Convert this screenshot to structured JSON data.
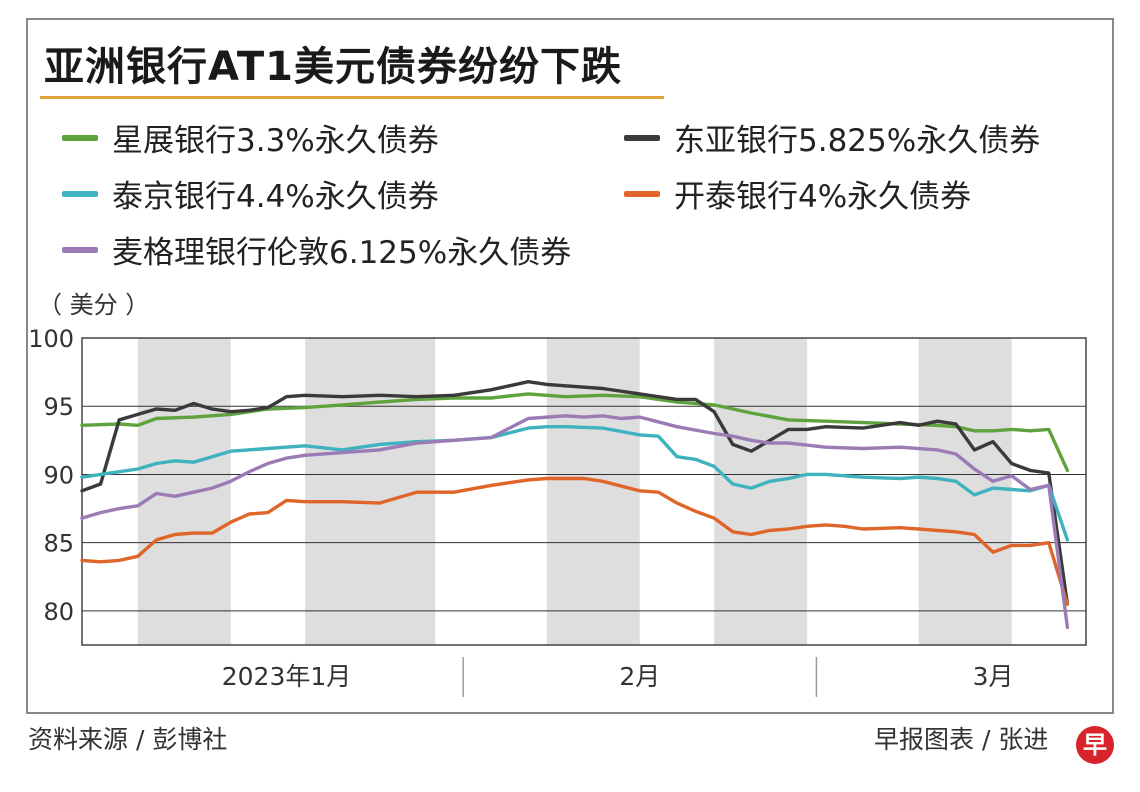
{
  "chart_data": {
    "type": "line",
    "title": "亚洲银行AT1美元债券纷纷下跌",
    "unit_label": "（ 美分 ）",
    "ylabel": "美分",
    "xlabel": "",
    "ylim": [
      77.5,
      100
    ],
    "yticks": [
      80,
      85,
      90,
      95,
      100
    ],
    "x_range": [
      0,
      54
    ],
    "month_labels": [
      {
        "label": "2023年1月",
        "x": 11
      },
      {
        "label": "2月",
        "x": 30
      },
      {
        "label": "3月",
        "x": 49
      }
    ],
    "month_boundaries": [
      20.5,
      39.5
    ],
    "shaded_weeks": [
      [
        3,
        8
      ],
      [
        12,
        19
      ],
      [
        25,
        30
      ],
      [
        34,
        39
      ],
      [
        45,
        50
      ]
    ],
    "grid": true,
    "series": [
      {
        "name": "星展银行3.3%永久债券",
        "color": "#5fa33e",
        "x": [
          0,
          2,
          3,
          4,
          6,
          8,
          10,
          12,
          14,
          16,
          18,
          20,
          22,
          24,
          26,
          28,
          30,
          32,
          34,
          36,
          38,
          40,
          42,
          44,
          46,
          47,
          48,
          49,
          50,
          51,
          52,
          53
        ],
        "values": [
          93.6,
          93.7,
          93.6,
          94.1,
          94.2,
          94.4,
          94.8,
          94.9,
          95.1,
          95.3,
          95.5,
          95.6,
          95.6,
          95.9,
          95.7,
          95.8,
          95.7,
          95.3,
          95.1,
          94.5,
          94.0,
          93.9,
          93.8,
          93.7,
          93.6,
          93.5,
          93.2,
          93.2,
          93.3,
          93.2,
          93.3,
          90.3
        ]
      },
      {
        "name": "东亚银行5.825%永久债券",
        "color": "#3a3a3a",
        "x": [
          0,
          1,
          2,
          3,
          4,
          5,
          6,
          7,
          8,
          9,
          10,
          11,
          12,
          14,
          16,
          18,
          20,
          22,
          24,
          25,
          26,
          28,
          30,
          31,
          32,
          33,
          34,
          35,
          36,
          37,
          38,
          39,
          40,
          42,
          44,
          45,
          46,
          47,
          48,
          49,
          50,
          51,
          52,
          53
        ],
        "values": [
          88.8,
          89.3,
          94.0,
          94.4,
          94.8,
          94.7,
          95.2,
          94.8,
          94.6,
          94.7,
          94.9,
          95.7,
          95.8,
          95.7,
          95.8,
          95.7,
          95.8,
          96.2,
          96.8,
          96.6,
          96.5,
          96.3,
          95.9,
          95.7,
          95.5,
          95.5,
          94.6,
          92.2,
          91.7,
          92.5,
          93.3,
          93.3,
          93.5,
          93.4,
          93.8,
          93.6,
          93.9,
          93.7,
          91.8,
          92.4,
          90.8,
          90.3,
          90.1,
          80.5
        ]
      },
      {
        "name": "泰京银行4.4%永久债券",
        "color": "#3fb2bf",
        "x": [
          0,
          2,
          3,
          4,
          5,
          6,
          7,
          8,
          10,
          12,
          14,
          16,
          18,
          20,
          22,
          24,
          25,
          26,
          28,
          30,
          31,
          32,
          33,
          34,
          35,
          36,
          37,
          38,
          39,
          40,
          42,
          44,
          45,
          46,
          47,
          48,
          49,
          50,
          51,
          52,
          53
        ],
        "values": [
          89.8,
          90.2,
          90.4,
          90.8,
          91.0,
          90.9,
          91.3,
          91.7,
          91.9,
          92.1,
          91.8,
          92.2,
          92.4,
          92.5,
          92.7,
          93.4,
          93.5,
          93.5,
          93.4,
          92.9,
          92.8,
          91.3,
          91.1,
          90.6,
          89.3,
          89.0,
          89.5,
          89.7,
          90.0,
          90.0,
          89.8,
          89.7,
          89.8,
          89.7,
          89.5,
          88.5,
          89.0,
          88.9,
          88.8,
          89.2,
          85.2
        ]
      },
      {
        "name": "开泰银行4%永久债券",
        "color": "#e0652a",
        "x": [
          0,
          1,
          2,
          3,
          4,
          5,
          6,
          7,
          8,
          9,
          10,
          11,
          12,
          14,
          16,
          18,
          20,
          22,
          24,
          25,
          26,
          27,
          28,
          30,
          31,
          32,
          33,
          34,
          35,
          36,
          37,
          38,
          39,
          40,
          41,
          42,
          44,
          45,
          46,
          47,
          48,
          49,
          50,
          51,
          52,
          53
        ],
        "values": [
          83.7,
          83.6,
          83.7,
          84.0,
          85.2,
          85.6,
          85.7,
          85.7,
          86.5,
          87.1,
          87.2,
          88.1,
          88.0,
          88.0,
          87.9,
          88.7,
          88.7,
          89.2,
          89.6,
          89.7,
          89.7,
          89.7,
          89.5,
          88.8,
          88.7,
          87.9,
          87.3,
          86.8,
          85.8,
          85.6,
          85.9,
          86.0,
          86.2,
          86.3,
          86.2,
          86.0,
          86.1,
          86.0,
          85.9,
          85.8,
          85.6,
          84.3,
          84.8,
          84.8,
          85.0,
          80.5
        ]
      },
      {
        "name": "麦格理银行伦敦6.125%永久债券",
        "color": "#9b7bb5",
        "x": [
          0,
          1,
          2,
          3,
          4,
          5,
          6,
          7,
          8,
          9,
          10,
          11,
          12,
          14,
          16,
          18,
          20,
          22,
          24,
          26,
          27,
          28,
          29,
          30,
          32,
          34,
          35,
          36,
          37,
          38,
          40,
          42,
          44,
          46,
          47,
          48,
          49,
          50,
          51,
          52,
          53
        ],
        "values": [
          86.8,
          87.2,
          87.5,
          87.7,
          88.6,
          88.4,
          88.7,
          89.0,
          89.5,
          90.2,
          90.8,
          91.2,
          91.4,
          91.6,
          91.8,
          92.3,
          92.5,
          92.7,
          94.1,
          94.3,
          94.2,
          94.3,
          94.1,
          94.2,
          93.5,
          93.0,
          92.8,
          92.5,
          92.3,
          92.3,
          92.0,
          91.9,
          92.0,
          91.8,
          91.5,
          90.4,
          89.5,
          89.9,
          88.9,
          89.2,
          78.8
        ]
      }
    ]
  },
  "legend": {
    "items": [
      {
        "label": "星展银行3.3%永久债券",
        "color": "#5fa33e"
      },
      {
        "label": "东亚银行5.825%永久债券",
        "color": "#3a3a3a"
      },
      {
        "label": "泰京银行4.4%永久债券",
        "color": "#3fb2bf"
      },
      {
        "label": "开泰银行4%永久债券",
        "color": "#e0652a"
      },
      {
        "label": "麦格理银行伦敦6.125%永久债券",
        "color": "#9b7bb5"
      }
    ]
  },
  "footer": {
    "source": "资料来源 / 彭博社",
    "credit": "早报图表 / 张进",
    "logo_text": "早"
  },
  "colors": {
    "title_rule": "#e0a43a",
    "shade": "#dedede",
    "logo": "#d8232a"
  }
}
